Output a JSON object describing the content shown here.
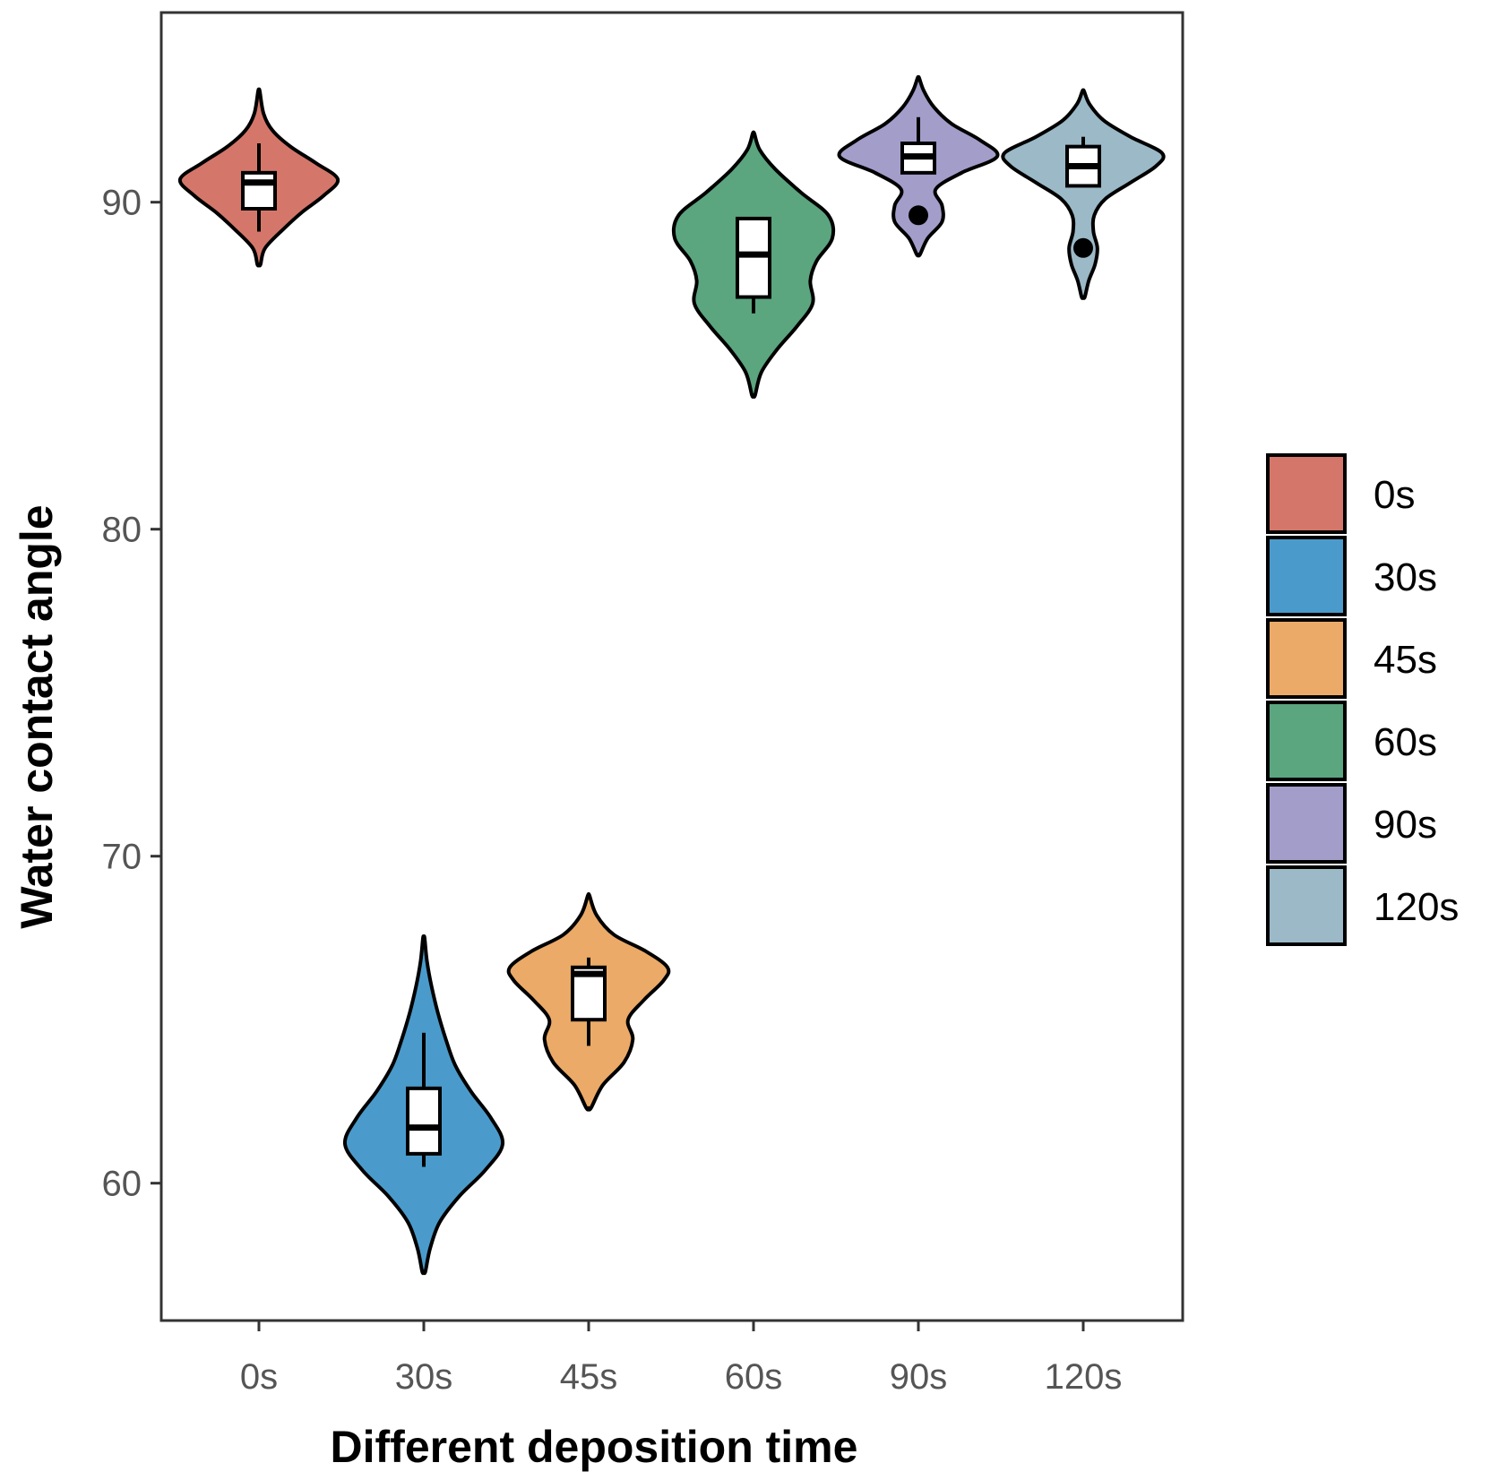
{
  "chart_data": {
    "type": "violin",
    "xlabel": "Different deposition time",
    "ylabel": "Water contact angle",
    "categories": [
      "0s",
      "30s",
      "45s",
      "60s",
      "90s",
      "120s"
    ],
    "ylim": [
      55.8,
      95.8
    ],
    "yticks": [
      60,
      70,
      80,
      90
    ],
    "legend": {
      "position": "right",
      "title": ""
    },
    "series": [
      {
        "name": "0s",
        "color": "#D4776A",
        "violin_min": 88.1,
        "violin_max": 93.4,
        "box": {
          "whisker_low": 89.1,
          "q1": 89.8,
          "median": 90.6,
          "q3": 90.9,
          "whisker_high": 91.8
        },
        "outliers": [],
        "density": [
          [
            88.1,
            0.02
          ],
          [
            88.6,
            0.08
          ],
          [
            89.2,
            0.32
          ],
          [
            89.7,
            0.55
          ],
          [
            90.2,
            0.82
          ],
          [
            90.7,
            1.0
          ],
          [
            91.2,
            0.72
          ],
          [
            91.7,
            0.4
          ],
          [
            92.2,
            0.17
          ],
          [
            92.7,
            0.06
          ],
          [
            93.4,
            0.01
          ]
        ]
      },
      {
        "name": "30s",
        "color": "#4A9BCB",
        "violin_min": 57.3,
        "violin_max": 67.5,
        "box": {
          "whisker_low": 60.5,
          "q1": 60.9,
          "median": 61.7,
          "q3": 62.9,
          "whisker_high": 64.6
        },
        "outliers": [],
        "density": [
          [
            57.3,
            0.02
          ],
          [
            58.0,
            0.08
          ],
          [
            58.8,
            0.2
          ],
          [
            59.6,
            0.45
          ],
          [
            60.4,
            0.78
          ],
          [
            61.2,
            1.0
          ],
          [
            62.0,
            0.85
          ],
          [
            62.8,
            0.6
          ],
          [
            63.6,
            0.4
          ],
          [
            64.4,
            0.28
          ],
          [
            65.2,
            0.18
          ],
          [
            66.0,
            0.1
          ],
          [
            66.8,
            0.04
          ],
          [
            67.5,
            0.01
          ]
        ]
      },
      {
        "name": "45s",
        "color": "#EBAA67",
        "violin_min": 62.3,
        "violin_max": 68.8,
        "box": {
          "whisker_low": 64.2,
          "q1": 65.0,
          "median": 66.4,
          "q3": 66.6,
          "whisker_high": 66.9
        },
        "outliers": [],
        "density": [
          [
            62.3,
            0.03
          ],
          [
            63.0,
            0.18
          ],
          [
            63.7,
            0.45
          ],
          [
            64.4,
            0.56
          ],
          [
            65.0,
            0.5
          ],
          [
            65.6,
            0.7
          ],
          [
            66.2,
            0.95
          ],
          [
            66.6,
            1.0
          ],
          [
            67.1,
            0.72
          ],
          [
            67.6,
            0.32
          ],
          [
            68.2,
            0.1
          ],
          [
            68.8,
            0.01
          ]
        ]
      },
      {
        "name": "60s",
        "color": "#5BA57F",
        "violin_min": 84.1,
        "violin_max": 92.1,
        "box": {
          "whisker_low": 86.6,
          "q1": 87.1,
          "median": 88.4,
          "q3": 89.5,
          "whisker_high": 89.5
        },
        "outliers": [],
        "density": [
          [
            84.1,
            0.02
          ],
          [
            84.8,
            0.1
          ],
          [
            85.5,
            0.3
          ],
          [
            86.2,
            0.55
          ],
          [
            86.9,
            0.75
          ],
          [
            87.6,
            0.72
          ],
          [
            88.2,
            0.8
          ],
          [
            88.9,
            1.0
          ],
          [
            89.6,
            0.95
          ],
          [
            90.3,
            0.6
          ],
          [
            91.0,
            0.28
          ],
          [
            91.6,
            0.08
          ],
          [
            92.1,
            0.01
          ]
        ]
      },
      {
        "name": "90s",
        "color": "#A39DCA",
        "violin_min": 88.4,
        "violin_max": 93.8,
        "box": {
          "whisker_low": 90.9,
          "q1": 90.9,
          "median": 91.4,
          "q3": 91.8,
          "whisker_high": 92.6
        },
        "outliers": [
          89.6
        ],
        "density": [
          [
            88.4,
            0.02
          ],
          [
            88.9,
            0.12
          ],
          [
            89.4,
            0.3
          ],
          [
            89.9,
            0.3
          ],
          [
            90.4,
            0.22
          ],
          [
            90.9,
            0.55
          ],
          [
            91.4,
            1.0
          ],
          [
            91.9,
            0.78
          ],
          [
            92.4,
            0.42
          ],
          [
            92.9,
            0.2
          ],
          [
            93.4,
            0.07
          ],
          [
            93.8,
            0.01
          ]
        ]
      },
      {
        "name": "120s",
        "color": "#9BB9C7",
        "violin_min": 87.1,
        "violin_max": 93.4,
        "box": {
          "whisker_low": 90.5,
          "q1": 90.5,
          "median": 91.1,
          "q3": 91.7,
          "whisker_high": 92.0
        },
        "outliers": [
          88.6
        ],
        "density": [
          [
            87.1,
            0.02
          ],
          [
            87.6,
            0.07
          ],
          [
            88.1,
            0.15
          ],
          [
            88.6,
            0.18
          ],
          [
            89.1,
            0.13
          ],
          [
            89.6,
            0.14
          ],
          [
            90.1,
            0.28
          ],
          [
            90.6,
            0.6
          ],
          [
            91.1,
            0.92
          ],
          [
            91.5,
            1.0
          ],
          [
            92.0,
            0.6
          ],
          [
            92.5,
            0.26
          ],
          [
            93.0,
            0.08
          ],
          [
            93.4,
            0.01
          ]
        ]
      }
    ]
  }
}
